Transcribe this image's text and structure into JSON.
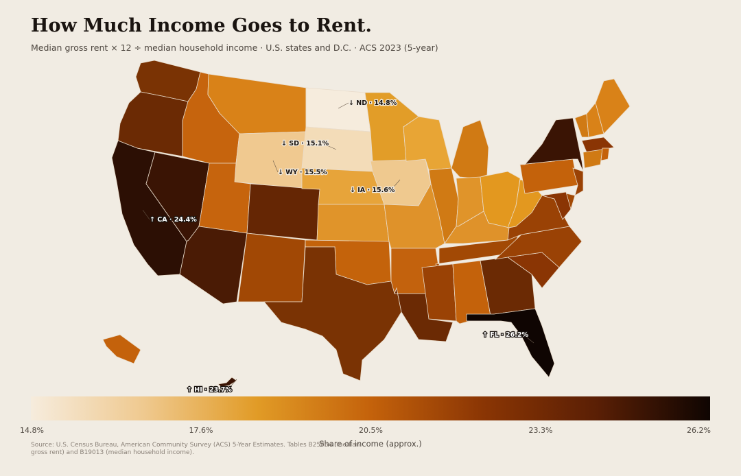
{
  "header": {
    "title": "How Much Income Goes to Rent.",
    "subtitle": "Median gross rent × 12 ÷ median household income · U.S. states and D.C. · ACS 2023 (5-year)"
  },
  "colors": {
    "background": "#f1ece3",
    "ramp": [
      "#f6ecdd",
      "#efc98f",
      "#e19b26",
      "#c4620b",
      "#8a3504",
      "#5a1f05",
      "#0f0502"
    ],
    "state_border": "#e9dccb"
  },
  "states": {
    "WA": "#7a3304",
    "OR": "#6b2a04",
    "CA": "#2c0f04",
    "NV": "#3a1404",
    "ID": "#c6640d",
    "MT": "#d98218",
    "WY": "#f0c990",
    "UT": "#c6640d",
    "AZ": "#4a1b05",
    "CO": "#652604",
    "NM": "#a14805",
    "ND": "#f6ecdd",
    "SD": "#f3dcb8",
    "NE": "#e7a43a",
    "KS": "#e0942a",
    "OK": "#c4630b",
    "TX": "#7a3304",
    "MN": "#e29d28",
    "IA": "#efc98f",
    "MO": "#df922a",
    "AR": "#c3620d",
    "LA": "#6b2a04",
    "WI": "#e8a535",
    "IL": "#d07a14",
    "MI": "#d07a14",
    "IN": "#e0942a",
    "OH": "#e3981f",
    "KY": "#df922a",
    "TN": "#a24905",
    "MS": "#9a4205",
    "AL": "#c4620b",
    "GA": "#6b2a04",
    "FL": "#0f0502",
    "SC": "#8a3504",
    "NC": "#9a4205",
    "VA": "#9a4205",
    "WV": "#e3981f",
    "PA": "#c4620b",
    "NY": "#3a1404",
    "VT": "#d07a14",
    "NH": "#d98218",
    "ME": "#d98218",
    "MA": "#8a3504",
    "CT": "#d07a14",
    "RI": "#c4620b",
    "NJ": "#9a4205",
    "DE": "#a24905",
    "MD": "#8a3504",
    "AK": "#c4620b",
    "HI": "#3a1404"
  },
  "callouts": [
    {
      "label": "↓ ND · 14.8%",
      "state": "ND",
      "dark": false
    },
    {
      "label": "↓ SD · 15.1%",
      "state": "SD",
      "dark": false
    },
    {
      "label": "↓ WY · 15.5%",
      "state": "WY",
      "dark": false
    },
    {
      "label": "↓ IA · 15.6%",
      "state": "IA",
      "dark": false
    },
    {
      "label": "↑ CA · 24.4%",
      "state": "CA",
      "dark": true
    },
    {
      "label": "↑ FL · 26.2%",
      "state": "FL",
      "dark": true
    },
    {
      "label": "↑ HI · 23.7%",
      "state": "HI",
      "dark": true
    }
  ],
  "legend": {
    "title": "Share of income (approx.)",
    "min": 14.8,
    "max": 26.2,
    "ticks": [
      "14.8%",
      "17.6%",
      "20.5%",
      "23.3%",
      "26.2%"
    ]
  },
  "source": "Source: U.S. Census Bureau, American Community Survey (ACS) 5-Year Estimates. Tables B25064 (median gross rent) and B19013 (median household income)."
}
